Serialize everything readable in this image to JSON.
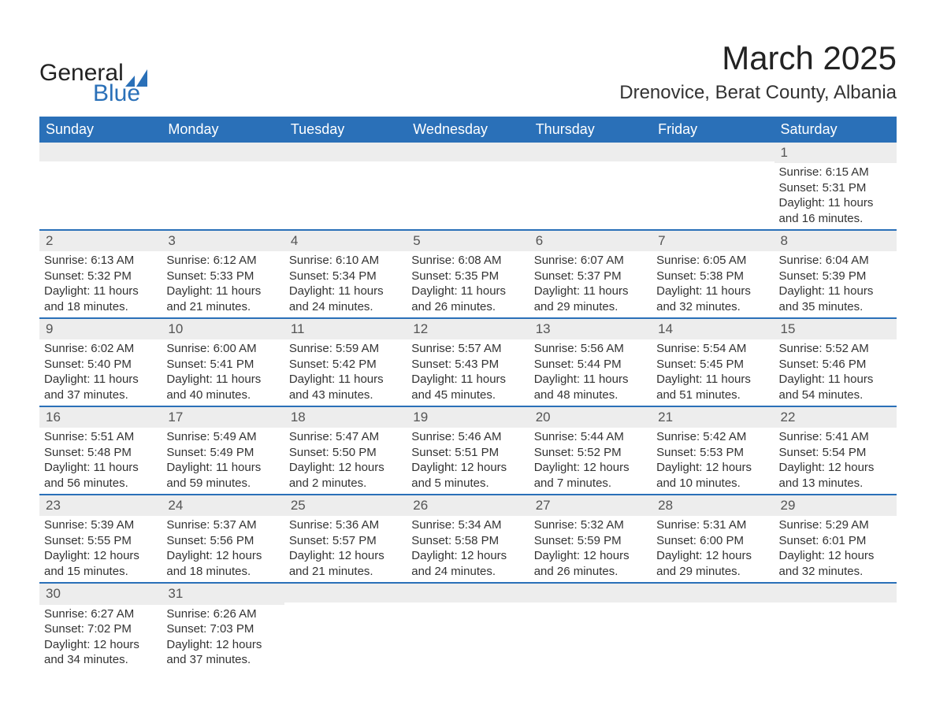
{
  "brand": {
    "line1": "General",
    "line2": "Blue",
    "mark_color": "#2a70b8"
  },
  "title": {
    "month": "March 2025",
    "location": "Drenovice, Berat County, Albania"
  },
  "colors": {
    "header_bg": "#2a70b8",
    "header_text": "#ffffff",
    "row_divider": "#2a70b8",
    "daynum_bg": "#ededed",
    "daynum_text": "#555555",
    "body_text": "#333333",
    "page_bg": "#ffffff"
  },
  "typography": {
    "title_fontsize_pt": 32,
    "location_fontsize_pt": 18,
    "weekday_fontsize_pt": 14,
    "body_fontsize_pt": 11,
    "font_family": "Arial"
  },
  "calendar": {
    "type": "table",
    "weekdays": [
      "Sunday",
      "Monday",
      "Tuesday",
      "Wednesday",
      "Thursday",
      "Friday",
      "Saturday"
    ],
    "weeks": [
      [
        null,
        null,
        null,
        null,
        null,
        null,
        {
          "n": "1",
          "sunrise": "Sunrise: 6:15 AM",
          "sunset": "Sunset: 5:31 PM",
          "dl1": "Daylight: 11 hours",
          "dl2": "and 16 minutes."
        }
      ],
      [
        {
          "n": "2",
          "sunrise": "Sunrise: 6:13 AM",
          "sunset": "Sunset: 5:32 PM",
          "dl1": "Daylight: 11 hours",
          "dl2": "and 18 minutes."
        },
        {
          "n": "3",
          "sunrise": "Sunrise: 6:12 AM",
          "sunset": "Sunset: 5:33 PM",
          "dl1": "Daylight: 11 hours",
          "dl2": "and 21 minutes."
        },
        {
          "n": "4",
          "sunrise": "Sunrise: 6:10 AM",
          "sunset": "Sunset: 5:34 PM",
          "dl1": "Daylight: 11 hours",
          "dl2": "and 24 minutes."
        },
        {
          "n": "5",
          "sunrise": "Sunrise: 6:08 AM",
          "sunset": "Sunset: 5:35 PM",
          "dl1": "Daylight: 11 hours",
          "dl2": "and 26 minutes."
        },
        {
          "n": "6",
          "sunrise": "Sunrise: 6:07 AM",
          "sunset": "Sunset: 5:37 PM",
          "dl1": "Daylight: 11 hours",
          "dl2": "and 29 minutes."
        },
        {
          "n": "7",
          "sunrise": "Sunrise: 6:05 AM",
          "sunset": "Sunset: 5:38 PM",
          "dl1": "Daylight: 11 hours",
          "dl2": "and 32 minutes."
        },
        {
          "n": "8",
          "sunrise": "Sunrise: 6:04 AM",
          "sunset": "Sunset: 5:39 PM",
          "dl1": "Daylight: 11 hours",
          "dl2": "and 35 minutes."
        }
      ],
      [
        {
          "n": "9",
          "sunrise": "Sunrise: 6:02 AM",
          "sunset": "Sunset: 5:40 PM",
          "dl1": "Daylight: 11 hours",
          "dl2": "and 37 minutes."
        },
        {
          "n": "10",
          "sunrise": "Sunrise: 6:00 AM",
          "sunset": "Sunset: 5:41 PM",
          "dl1": "Daylight: 11 hours",
          "dl2": "and 40 minutes."
        },
        {
          "n": "11",
          "sunrise": "Sunrise: 5:59 AM",
          "sunset": "Sunset: 5:42 PM",
          "dl1": "Daylight: 11 hours",
          "dl2": "and 43 minutes."
        },
        {
          "n": "12",
          "sunrise": "Sunrise: 5:57 AM",
          "sunset": "Sunset: 5:43 PM",
          "dl1": "Daylight: 11 hours",
          "dl2": "and 45 minutes."
        },
        {
          "n": "13",
          "sunrise": "Sunrise: 5:56 AM",
          "sunset": "Sunset: 5:44 PM",
          "dl1": "Daylight: 11 hours",
          "dl2": "and 48 minutes."
        },
        {
          "n": "14",
          "sunrise": "Sunrise: 5:54 AM",
          "sunset": "Sunset: 5:45 PM",
          "dl1": "Daylight: 11 hours",
          "dl2": "and 51 minutes."
        },
        {
          "n": "15",
          "sunrise": "Sunrise: 5:52 AM",
          "sunset": "Sunset: 5:46 PM",
          "dl1": "Daylight: 11 hours",
          "dl2": "and 54 minutes."
        }
      ],
      [
        {
          "n": "16",
          "sunrise": "Sunrise: 5:51 AM",
          "sunset": "Sunset: 5:48 PM",
          "dl1": "Daylight: 11 hours",
          "dl2": "and 56 minutes."
        },
        {
          "n": "17",
          "sunrise": "Sunrise: 5:49 AM",
          "sunset": "Sunset: 5:49 PM",
          "dl1": "Daylight: 11 hours",
          "dl2": "and 59 minutes."
        },
        {
          "n": "18",
          "sunrise": "Sunrise: 5:47 AM",
          "sunset": "Sunset: 5:50 PM",
          "dl1": "Daylight: 12 hours",
          "dl2": "and 2 minutes."
        },
        {
          "n": "19",
          "sunrise": "Sunrise: 5:46 AM",
          "sunset": "Sunset: 5:51 PM",
          "dl1": "Daylight: 12 hours",
          "dl2": "and 5 minutes."
        },
        {
          "n": "20",
          "sunrise": "Sunrise: 5:44 AM",
          "sunset": "Sunset: 5:52 PM",
          "dl1": "Daylight: 12 hours",
          "dl2": "and 7 minutes."
        },
        {
          "n": "21",
          "sunrise": "Sunrise: 5:42 AM",
          "sunset": "Sunset: 5:53 PM",
          "dl1": "Daylight: 12 hours",
          "dl2": "and 10 minutes."
        },
        {
          "n": "22",
          "sunrise": "Sunrise: 5:41 AM",
          "sunset": "Sunset: 5:54 PM",
          "dl1": "Daylight: 12 hours",
          "dl2": "and 13 minutes."
        }
      ],
      [
        {
          "n": "23",
          "sunrise": "Sunrise: 5:39 AM",
          "sunset": "Sunset: 5:55 PM",
          "dl1": "Daylight: 12 hours",
          "dl2": "and 15 minutes."
        },
        {
          "n": "24",
          "sunrise": "Sunrise: 5:37 AM",
          "sunset": "Sunset: 5:56 PM",
          "dl1": "Daylight: 12 hours",
          "dl2": "and 18 minutes."
        },
        {
          "n": "25",
          "sunrise": "Sunrise: 5:36 AM",
          "sunset": "Sunset: 5:57 PM",
          "dl1": "Daylight: 12 hours",
          "dl2": "and 21 minutes."
        },
        {
          "n": "26",
          "sunrise": "Sunrise: 5:34 AM",
          "sunset": "Sunset: 5:58 PM",
          "dl1": "Daylight: 12 hours",
          "dl2": "and 24 minutes."
        },
        {
          "n": "27",
          "sunrise": "Sunrise: 5:32 AM",
          "sunset": "Sunset: 5:59 PM",
          "dl1": "Daylight: 12 hours",
          "dl2": "and 26 minutes."
        },
        {
          "n": "28",
          "sunrise": "Sunrise: 5:31 AM",
          "sunset": "Sunset: 6:00 PM",
          "dl1": "Daylight: 12 hours",
          "dl2": "and 29 minutes."
        },
        {
          "n": "29",
          "sunrise": "Sunrise: 5:29 AM",
          "sunset": "Sunset: 6:01 PM",
          "dl1": "Daylight: 12 hours",
          "dl2": "and 32 minutes."
        }
      ],
      [
        {
          "n": "30",
          "sunrise": "Sunrise: 6:27 AM",
          "sunset": "Sunset: 7:02 PM",
          "dl1": "Daylight: 12 hours",
          "dl2": "and 34 minutes."
        },
        {
          "n": "31",
          "sunrise": "Sunrise: 6:26 AM",
          "sunset": "Sunset: 7:03 PM",
          "dl1": "Daylight: 12 hours",
          "dl2": "and 37 minutes."
        },
        null,
        null,
        null,
        null,
        null
      ]
    ]
  }
}
